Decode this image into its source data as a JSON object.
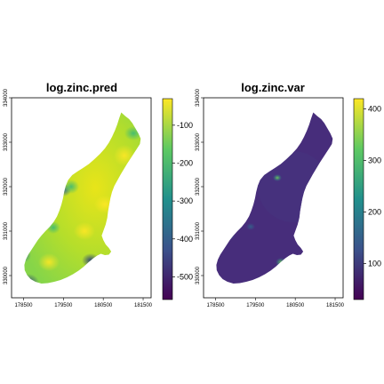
{
  "chart_data": [
    {
      "type": "heatmap",
      "title": "log.zinc.pred",
      "xlabel": "",
      "ylabel": "",
      "xlim": [
        178200,
        181700
      ],
      "ylim": [
        329500,
        334000
      ],
      "x_ticks": [
        "178500",
        "179500",
        "180500",
        "181500"
      ],
      "y_ticks": [
        "330000",
        "331000",
        "332000",
        "333000",
        "334000"
      ],
      "colorbar": {
        "ticks": [
          "-100",
          "-200",
          "-300",
          "-400",
          "-500"
        ],
        "range": [
          -560,
          -30
        ]
      },
      "palette": "viridis",
      "colors": {
        "low": "#440154",
        "mid": "#21908c",
        "high": "#fde725"
      }
    },
    {
      "type": "heatmap",
      "title": "log.zinc.var",
      "xlabel": "",
      "ylabel": "",
      "xlim": [
        178200,
        181700
      ],
      "ylim": [
        329500,
        334000
      ],
      "x_ticks": [
        "178500",
        "179500",
        "180500",
        "181500"
      ],
      "y_ticks": [
        "330000",
        "331000",
        "332000",
        "333000",
        "334000"
      ],
      "colorbar": {
        "ticks": [
          "400",
          "300",
          "200",
          "100"
        ],
        "range": [
          30,
          420
        ]
      },
      "palette": "viridis",
      "colors": {
        "low": "#440154",
        "mid": "#21908c",
        "high": "#fde725"
      }
    }
  ]
}
